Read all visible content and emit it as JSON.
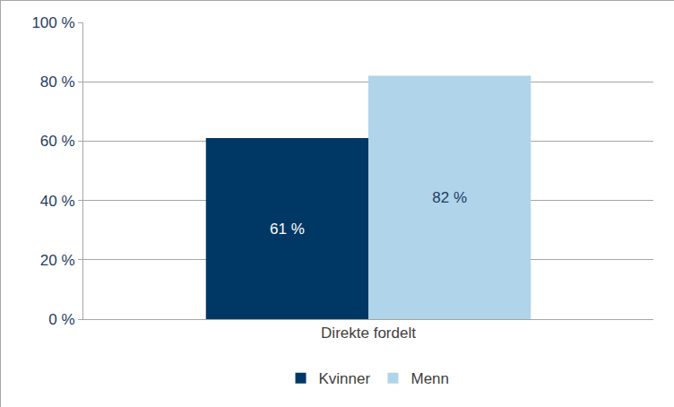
{
  "chart_data": {
    "type": "bar",
    "categories": [
      "Direkte fordelt"
    ],
    "series": [
      {
        "name": "Kvinner",
        "color": "#003865",
        "values": [
          61
        ],
        "value_labels": [
          "61 %"
        ]
      },
      {
        "name": "Menn",
        "color": "#b0d4ea",
        "values": [
          82
        ],
        "value_labels": [
          "82 %"
        ]
      }
    ],
    "ylim": [
      0,
      100
    ],
    "yticks": [
      {
        "value": 0,
        "label": "0 %"
      },
      {
        "value": 20,
        "label": "20 %"
      },
      {
        "value": 40,
        "label": "40 %"
      },
      {
        "value": 60,
        "label": "60 %"
      },
      {
        "value": 80,
        "label": "80 %"
      },
      {
        "value": 100,
        "label": "100 %"
      }
    ],
    "grid": true,
    "legend": "bottom",
    "data_labels": true
  }
}
